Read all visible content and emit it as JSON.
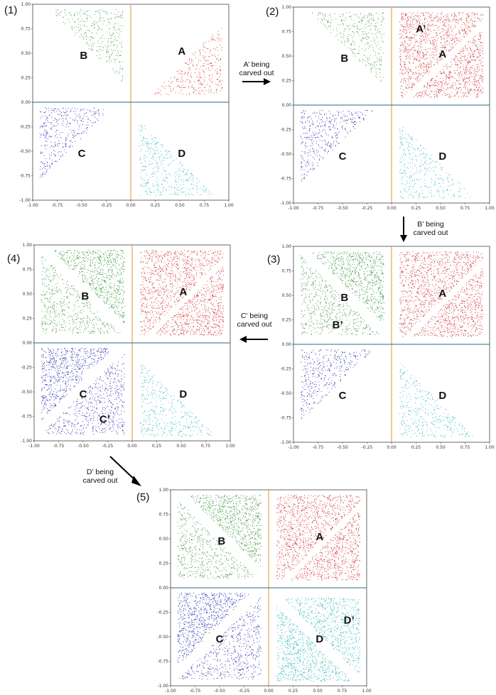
{
  "colors": {
    "A": "#d02020",
    "B": "#2a8a2a",
    "C": "#1a1aa8",
    "D": "#1fb0b0",
    "vline": "#e09030",
    "hline": "#2a6a8a",
    "arrow": "#000000"
  },
  "axis": {
    "xticks": [
      "-1.00",
      "-0.75",
      "-0.50",
      "-0.25",
      "0.00",
      "0.25",
      "0.50",
      "0.75",
      "1.00"
    ],
    "yticks": [
      "1.00",
      "0.75",
      "0.50",
      "0.25",
      "0.00",
      "-0.25",
      "-0.50",
      "-0.75",
      "-1.00"
    ]
  },
  "panels": [
    {
      "number": "(1)",
      "labels": {
        "A": "A",
        "B": "B",
        "C": "C",
        "D": "D"
      },
      "primed": []
    },
    {
      "number": "(2)",
      "labels": {
        "A": "A",
        "B": "B",
        "C": "C",
        "D": "D",
        "A2": "A’"
      },
      "primed": [
        "A"
      ]
    },
    {
      "number": "(3)",
      "labels": {
        "A": "A",
        "B": "B",
        "C": "C",
        "D": "D",
        "B2": "B’"
      },
      "primed": [
        "A",
        "B"
      ]
    },
    {
      "number": "(4)",
      "labels": {
        "A": "A",
        "B": "B",
        "C": "C",
        "D": "D",
        "C2": "C’"
      },
      "primed": [
        "A",
        "B",
        "C"
      ]
    },
    {
      "number": "(5)",
      "labels": {
        "A": "A",
        "B": "B",
        "C": "C",
        "D": "D",
        "D2": "D’"
      },
      "primed": [
        "A",
        "B",
        "C",
        "D"
      ]
    }
  ],
  "arrows": [
    {
      "line1": "A’ being",
      "line2": "carved out"
    },
    {
      "line1": "B’ being",
      "line2": "carved out"
    },
    {
      "line1": "C’ being",
      "line2": "carved out"
    },
    {
      "line1": "D’ being",
      "line2": "carved out"
    }
  ]
}
